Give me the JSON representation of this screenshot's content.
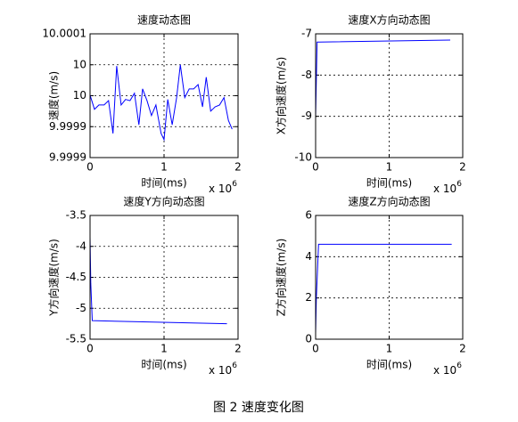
{
  "caption": "图 2 速度变化图",
  "chart_data": [
    {
      "type": "line",
      "title": "速度动态图",
      "xlabel": "时间(ms)",
      "ylabel": "速度(m/s)",
      "x_scale_label": "x 10",
      "x_scale_exponent": "6",
      "x": [
        0,
        60000,
        120000,
        190000,
        250000,
        310000,
        360000,
        420000,
        480000,
        540000,
        600000,
        660000,
        710000,
        770000,
        830000,
        890000,
        960000,
        1000000,
        1050000,
        1110000,
        1170000,
        1220000,
        1280000,
        1340000,
        1400000,
        1460000,
        1520000,
        1570000,
        1630000,
        1690000,
        1750000,
        1810000,
        1870000,
        1920000
      ],
      "values": [
        9.999961,
        9.999938,
        9.999945,
        9.999945,
        9.999952,
        9.999899,
        10.000008,
        9.999945,
        9.999954,
        9.999952,
        9.999964,
        9.999913,
        9.999971,
        9.999952,
        9.999928,
        9.999945,
        9.999899,
        9.999889,
        9.999954,
        9.999913,
        9.999957,
        10.00001,
        9.999957,
        9.999971,
        9.999971,
        9.999978,
        9.999942,
        9.99999,
        9.999935,
        9.999942,
        9.999945,
        9.999957,
        9.99992,
        9.999906
      ],
      "color": "#0000ff",
      "xlim": [
        0,
        2000000
      ],
      "xticks": [
        0,
        {
          "value": 1000000,
          "label": "1"
        },
        {
          "value": 2000000,
          "label": "2"
        }
      ],
      "ylim": [
        9.99986,
        10.00006
      ],
      "yticks": [
        {
          "value": 9.99986,
          "label": "9.9999"
        },
        {
          "value": 9.99991,
          "label": "9.9999"
        },
        {
          "value": 9.99996,
          "label": "10"
        },
        {
          "value": 10.00001,
          "label": "10"
        },
        {
          "value": 10.00006,
          "label": "10.0001"
        }
      ],
      "grid": true
    },
    {
      "type": "line",
      "title": "速度X方向动态图",
      "xlabel": "时间(ms)",
      "ylabel": "X方向速度(m/s)",
      "x_scale_label": "x 10",
      "x_scale_exponent": "6",
      "x": [
        0,
        20000,
        50000,
        1830000
      ],
      "values": [
        -9,
        -7.2,
        -7.2,
        -7.15
      ],
      "color": "#0000ff",
      "xlim": [
        0,
        2000000
      ],
      "xticks": [
        0,
        {
          "value": 1000000,
          "label": "1"
        },
        {
          "value": 2000000,
          "label": "2"
        }
      ],
      "ylim": [
        -10,
        -7
      ],
      "yticks": [
        -10,
        -9,
        -8,
        -7
      ],
      "grid": true
    },
    {
      "type": "line",
      "title": "速度Y方向动态图",
      "xlabel": "时间(ms)",
      "ylabel": "Y方向速度(m/s)",
      "x_scale_label": "x 10",
      "x_scale_exponent": "6",
      "x": [
        0,
        10000,
        30000,
        1850000
      ],
      "values": [
        -3.85,
        -4.6,
        -5.2,
        -5.25
      ],
      "color": "#0000ff",
      "xlim": [
        0,
        2000000
      ],
      "xticks": [
        0,
        {
          "value": 1000000,
          "label": "1"
        },
        {
          "value": 2000000,
          "label": "2"
        }
      ],
      "ylim": [
        -5.5,
        -3.5
      ],
      "yticks": [
        -5.5,
        -5,
        -4.5,
        -4,
        -3.5
      ],
      "grid": true
    },
    {
      "type": "line",
      "title": "速度Z方向动态图",
      "xlabel": "时间(ms)",
      "ylabel": "Z方向速度(m/s)",
      "x_scale_label": "x 10",
      "x_scale_exponent": "6",
      "x": [
        0,
        10000,
        40000,
        1850000
      ],
      "values": [
        0.3,
        2,
        4.6,
        4.6
      ],
      "color": "#0000ff",
      "xlim": [
        0,
        2000000
      ],
      "xticks": [
        0,
        {
          "value": 1000000,
          "label": "1"
        },
        {
          "value": 2000000,
          "label": "2"
        }
      ],
      "ylim": [
        0,
        6
      ],
      "yticks": [
        0,
        2,
        4,
        6
      ],
      "grid": true
    }
  ]
}
